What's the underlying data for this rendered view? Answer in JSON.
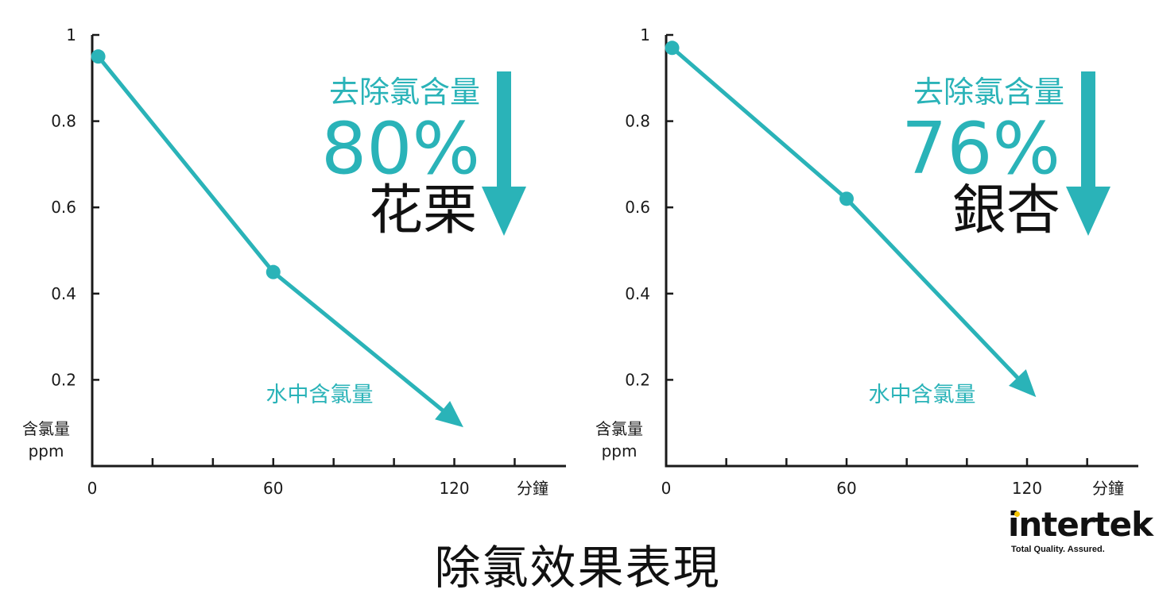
{
  "title": "除氯效果表現",
  "colors": {
    "accent": "#2ab3b8",
    "axis": "#1a1a1a",
    "text": "#111111"
  },
  "logo": {
    "name": "intertek",
    "tagline": "Total Quality. Assured."
  },
  "chart_data": [
    {
      "type": "line",
      "product": "花栗",
      "removal_label": "去除氯含量",
      "removal_percent": "80%",
      "series": [
        {
          "name": "水中含氯量",
          "x": [
            2,
            60
          ],
          "values": [
            0.95,
            0.45
          ]
        }
      ],
      "trend_end": {
        "x": 123,
        "y": 0.09
      },
      "xlim": [
        0,
        157
      ],
      "ylim": [
        0,
        1
      ],
      "x_ticks": [
        0,
        20,
        40,
        60,
        80,
        100,
        120,
        140
      ],
      "x_tick_labels": [
        {
          "x": 0,
          "label": "0"
        },
        {
          "x": 60,
          "label": "60"
        },
        {
          "x": 120,
          "label": "120"
        }
      ],
      "x_unit": "分鐘",
      "y_ticks": [
        {
          "y": 0.2,
          "label": "0.2"
        },
        {
          "y": 0.4,
          "label": "0.4"
        },
        {
          "y": 0.6,
          "label": "0.6"
        },
        {
          "y": 0.8,
          "label": "0.8"
        },
        {
          "y": 1.0,
          "label": "1"
        }
      ],
      "y_unit": [
        "含氯量",
        "ppm"
      ]
    },
    {
      "type": "line",
      "product": "銀杏",
      "removal_label": "去除氯含量",
      "removal_percent": "76%",
      "series": [
        {
          "name": "水中含氯量",
          "x": [
            2,
            60
          ],
          "values": [
            0.97,
            0.62
          ]
        }
      ],
      "trend_end": {
        "x": 123,
        "y": 0.16
      },
      "xlim": [
        0,
        157
      ],
      "ylim": [
        0,
        1
      ],
      "x_ticks": [
        0,
        20,
        40,
        60,
        80,
        100,
        120,
        140
      ],
      "x_tick_labels": [
        {
          "x": 0,
          "label": "0"
        },
        {
          "x": 60,
          "label": "60"
        },
        {
          "x": 120,
          "label": "120"
        }
      ],
      "x_unit": "分鐘",
      "y_ticks": [
        {
          "y": 0.2,
          "label": "0.2"
        },
        {
          "y": 0.4,
          "label": "0.4"
        },
        {
          "y": 0.6,
          "label": "0.6"
        },
        {
          "y": 0.8,
          "label": "0.8"
        },
        {
          "y": 1.0,
          "label": "1"
        }
      ],
      "y_unit": [
        "含氯量",
        "ppm"
      ]
    }
  ]
}
